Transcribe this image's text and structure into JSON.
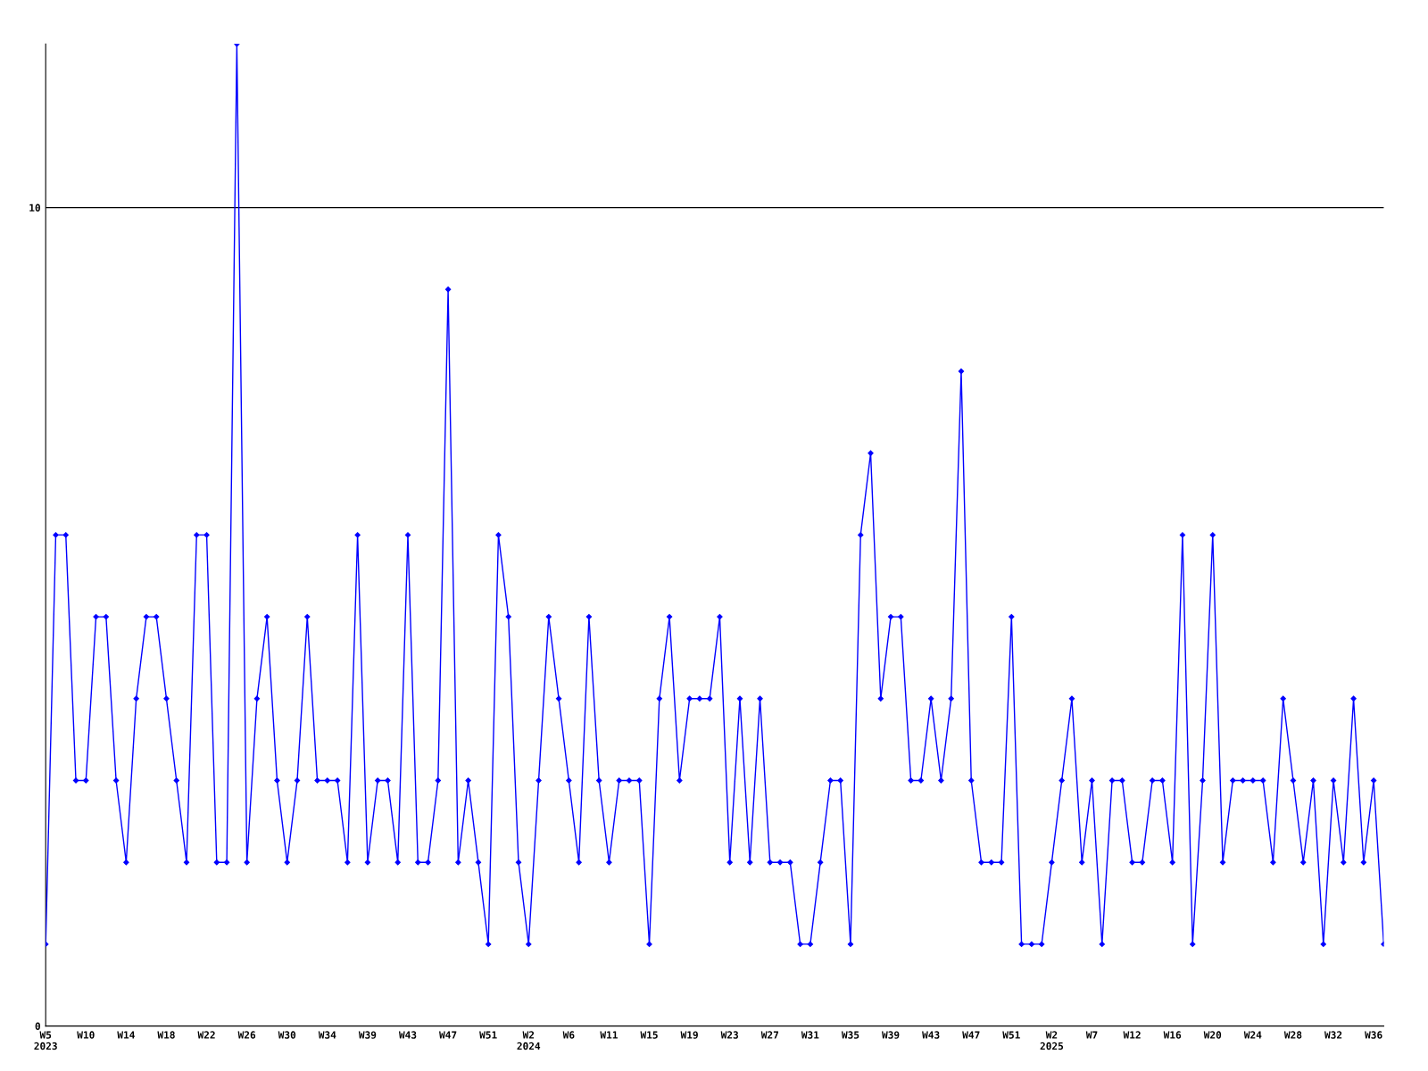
{
  "chart_data": {
    "type": "line",
    "categories": [
      "W5\n2023",
      null,
      null,
      null,
      "W10",
      null,
      null,
      null,
      "W14",
      null,
      null,
      null,
      "W18",
      null,
      null,
      null,
      "W22",
      null,
      null,
      null,
      "W26",
      null,
      null,
      null,
      "W30",
      null,
      null,
      null,
      "W34",
      null,
      null,
      null,
      "W39",
      null,
      null,
      null,
      "W43",
      null,
      null,
      null,
      "W47",
      null,
      null,
      null,
      "W51",
      null,
      null,
      null,
      "W2\n2024",
      null,
      null,
      null,
      "W6",
      null,
      null,
      null,
      "W11",
      null,
      null,
      null,
      "W15",
      null,
      null,
      null,
      "W19",
      null,
      null,
      null,
      "W23",
      null,
      null,
      null,
      "W27",
      null,
      null,
      null,
      "W31",
      null,
      null,
      null,
      "W35",
      null,
      null,
      null,
      "W39",
      null,
      null,
      null,
      "W43",
      null,
      null,
      null,
      "W47",
      null,
      null,
      null,
      "W51",
      null,
      null,
      null,
      "W2\n2025",
      null,
      null,
      null,
      "W7",
      null,
      null,
      null,
      "W12",
      null,
      null,
      null,
      "W16",
      null,
      null,
      null,
      "W20",
      null,
      null,
      null,
      "W24",
      null,
      null,
      null,
      "W28",
      null,
      null,
      null,
      "W32",
      null,
      null,
      null,
      "W36",
      null
    ],
    "series": [
      {
        "color": "#0000ff",
        "values": [
          1,
          6,
          6,
          3,
          3,
          5,
          5,
          3,
          2,
          4,
          5,
          5,
          4,
          3,
          2,
          6,
          6,
          2,
          2,
          12,
          2,
          4,
          5,
          3,
          2,
          3,
          5,
          3,
          3,
          3,
          2,
          6,
          2,
          3,
          3,
          2,
          6,
          2,
          2,
          3,
          9,
          2,
          3,
          2,
          1,
          6,
          5,
          2,
          1,
          3,
          5,
          4,
          3,
          2,
          5,
          3,
          2,
          3,
          3,
          3,
          1,
          4,
          5,
          3,
          4,
          4,
          4,
          5,
          2,
          4,
          2,
          4,
          2,
          2,
          2,
          1,
          1,
          2,
          3,
          3,
          1,
          6,
          7,
          4,
          5,
          5,
          3,
          3,
          4,
          3,
          4,
          8,
          3,
          2,
          2,
          2,
          5,
          1,
          1,
          1,
          2,
          3,
          4,
          2,
          3,
          1,
          3,
          3,
          2,
          2,
          3,
          3,
          2,
          6,
          1,
          3,
          6,
          2,
          3,
          3,
          3,
          3,
          2,
          4,
          3,
          2,
          3,
          1,
          3,
          2,
          4,
          2,
          3,
          1
        ]
      }
    ],
    "ylim": [
      0,
      12
    ],
    "yticks": [
      0,
      10
    ],
    "grid": "y",
    "marker": "diamond",
    "line_style": "solid"
  }
}
